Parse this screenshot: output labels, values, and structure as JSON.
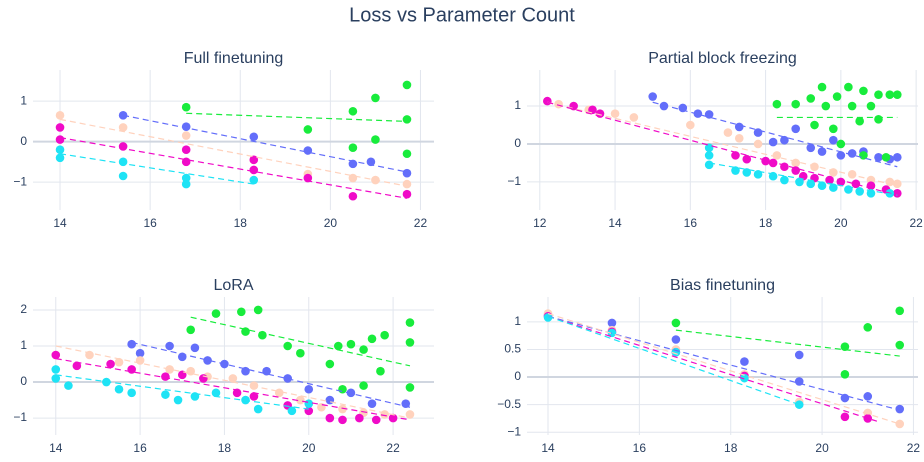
{
  "title": "Loss vs Parameter Count",
  "chart_data": [
    {
      "type": "scatter",
      "title": "Full finetuning",
      "xlim": [
        13.4,
        22.3
      ],
      "ylim": [
        -1.69,
        1.77
      ],
      "xticks": [
        14,
        16,
        18,
        20,
        22
      ],
      "yticks": [
        {
          "value": -1,
          "label": "−1"
        },
        0,
        1
      ],
      "grid": true,
      "series": [
        {
          "color": "#636efa",
          "x": [
            15.4,
            16.8,
            18.3,
            19.5,
            20.5,
            20.9,
            21.7
          ],
          "values": [
            0.65,
            0.37,
            0.12,
            -0.22,
            -0.55,
            -0.5,
            -0.78
          ],
          "trend_x": [
            15.4,
            21.7
          ],
          "trend_values": [
            0.65,
            -0.75
          ]
        },
        {
          "color": "#ffd2bd",
          "x": [
            14,
            15.4,
            16.8,
            18.3,
            19.5,
            20.5,
            21,
            21.7
          ],
          "values": [
            0.65,
            0.35,
            0.15,
            -0.45,
            -0.8,
            -0.9,
            -0.95,
            -1.05
          ],
          "trend_x": [
            14,
            21.7
          ],
          "trend_values": [
            0.55,
            -1.1
          ]
        },
        {
          "color": "#f00bc8",
          "x": [
            14,
            14,
            15.4,
            16.8,
            16.8,
            18.3,
            18.3,
            19.5,
            20.5,
            21.7
          ],
          "values": [
            0.35,
            0.05,
            -0.12,
            -0.2,
            -0.5,
            -0.45,
            -0.7,
            -0.9,
            -1.35,
            -1.3
          ],
          "trend_x": [
            14,
            21.7
          ],
          "trend_values": [
            0.1,
            -1.4
          ]
        },
        {
          "color": "#1ee3f5",
          "x": [
            14,
            14,
            15.4,
            15.4,
            16.8,
            16.8,
            18.3
          ],
          "values": [
            -0.2,
            -0.4,
            -0.5,
            -0.85,
            -0.9,
            -1.05,
            -0.95
          ],
          "trend_x": [
            14,
            18.3
          ],
          "trend_values": [
            -0.3,
            -1.05
          ]
        },
        {
          "color": "#18ec3c",
          "x": [
            16.8,
            19.5,
            20.5,
            20.5,
            21,
            21,
            21.7,
            21.7,
            21.7
          ],
          "values": [
            0.85,
            0.3,
            0.75,
            -0.15,
            1.08,
            0.05,
            1.4,
            0.55,
            -0.3
          ],
          "trend_x": [
            16.8,
            21.7
          ],
          "trend_values": [
            0.7,
            0.5
          ]
        }
      ]
    },
    {
      "type": "scatter",
      "title": "Partial block freezing",
      "xlim": [
        11.66,
        22.05
      ],
      "ylim": [
        -1.74,
        1.95
      ],
      "xticks": [
        12,
        14,
        16,
        18,
        20,
        22
      ],
      "yticks": [
        {
          "value": -1,
          "label": "−1"
        },
        0,
        1
      ],
      "grid": true,
      "series": [
        {
          "color": "#636efa",
          "x": [
            15,
            15.3,
            15.8,
            16.2,
            16.5,
            17.3,
            17.8,
            18.2,
            18.5,
            18.8,
            19.2,
            19.5,
            19.8,
            20,
            20.3,
            20.6,
            21,
            21.3,
            21.5
          ],
          "values": [
            1.25,
            1.0,
            0.95,
            0.8,
            0.78,
            0.45,
            0.3,
            0.05,
            0.1,
            0.4,
            -0.1,
            -0.2,
            0.1,
            -0.3,
            -0.25,
            -0.2,
            -0.35,
            -0.4,
            -0.35
          ],
          "trend_x": [
            15,
            21.5
          ],
          "trend_values": [
            1.1,
            -0.6
          ]
        },
        {
          "color": "#ffd2bd",
          "x": [
            12.5,
            13.3,
            14,
            14.5,
            16,
            17,
            17.3,
            17.8,
            18.3,
            18.8,
            19.3,
            19.8,
            20.3,
            20.8,
            21.3,
            21.5
          ],
          "values": [
            1.05,
            0.9,
            0.8,
            0.7,
            0.5,
            0.3,
            0.15,
            0.0,
            -0.3,
            -0.5,
            -0.6,
            -0.75,
            -0.8,
            -0.95,
            -1.0,
            -1.05
          ],
          "trend_x": [
            12.2,
            21.5
          ],
          "trend_values": [
            1.1,
            -1.1
          ]
        },
        {
          "color": "#f00bc8",
          "x": [
            12.2,
            12.9,
            13.4,
            13.6,
            17.2,
            17.5,
            18,
            18.2,
            18.5,
            18.8,
            19,
            19.3,
            19.7,
            20,
            20.4,
            20.8,
            21.2,
            21.5
          ],
          "values": [
            1.13,
            1.0,
            0.9,
            0.8,
            -0.3,
            -0.4,
            -0.45,
            -0.5,
            -0.6,
            -0.7,
            -0.85,
            -0.9,
            -0.95,
            -1.0,
            -1.05,
            -1.1,
            -1.2,
            -1.3
          ],
          "trend_x": [
            12.2,
            21.5
          ],
          "trend_values": [
            1.1,
            -1.35
          ]
        },
        {
          "color": "#1ee3f5",
          "x": [
            16.5,
            16.5,
            16.5,
            17.2,
            17.5,
            17.8,
            18.2,
            18.5,
            18.9,
            19.2,
            19.5,
            19.8,
            20.2,
            20.5,
            20.8,
            21.3
          ],
          "values": [
            -0.1,
            -0.3,
            -0.55,
            -0.7,
            -0.75,
            -0.8,
            -0.85,
            -0.95,
            -1.0,
            -1.05,
            -1.1,
            -1.15,
            -1.2,
            -1.25,
            -1.3,
            -1.3
          ],
          "trend_x": [
            16.5,
            21.5
          ],
          "trend_values": [
            -0.5,
            -1.35
          ]
        },
        {
          "color": "#18ec3c",
          "x": [
            18.3,
            18.8,
            19.2,
            19.5,
            19.6,
            19.9,
            20.2,
            20.3,
            20.6,
            20.8,
            21,
            21.3,
            21.5,
            19.3,
            19.8,
            20.5,
            21,
            20,
            20.6,
            21.2
          ],
          "values": [
            1.05,
            1.05,
            1.2,
            1.5,
            1.0,
            1.25,
            1.5,
            1.0,
            1.4,
            1.0,
            1.3,
            1.3,
            1.3,
            0.5,
            0.4,
            0.6,
            0.65,
            0.0,
            -0.3,
            -0.35
          ],
          "trend_x": [
            18.3,
            21.5
          ],
          "trend_values": [
            0.7,
            0.7
          ]
        }
      ]
    },
    {
      "type": "scatter",
      "title": "LoRA",
      "xlim": [
        13.46,
        22.97
      ],
      "ylim": [
        -1.47,
        2.36
      ],
      "xticks": [
        14,
        16,
        18,
        20,
        22
      ],
      "yticks": [
        {
          "value": -1,
          "label": "−1"
        },
        0,
        1,
        2
      ],
      "grid": true,
      "series": [
        {
          "color": "#636efa",
          "x": [
            15.8,
            16,
            16.7,
            17,
            17.3,
            17.6,
            18,
            18.5,
            19,
            19.5,
            20,
            20.5,
            21,
            21.5,
            22.3
          ],
          "values": [
            1.05,
            0.8,
            1.0,
            0.7,
            0.95,
            0.6,
            0.5,
            0.3,
            0.3,
            0.1,
            -0.2,
            -0.5,
            -0.3,
            -0.6,
            -0.6
          ],
          "trend_x": [
            15.8,
            22.4
          ],
          "trend_values": [
            1.1,
            -0.7
          ]
        },
        {
          "color": "#ffd2bd",
          "x": [
            14,
            14.8,
            15.5,
            16,
            16.7,
            17.2,
            17.6,
            18.2,
            18.7,
            19.3,
            19.8,
            20.3,
            20.8,
            21.3,
            21.8,
            22.4
          ],
          "values": [
            0.75,
            0.75,
            0.55,
            0.6,
            0.35,
            0.3,
            0.15,
            0.1,
            -0.1,
            -0.3,
            -0.5,
            -0.7,
            -0.75,
            -0.85,
            -0.9,
            -0.9
          ],
          "trend_x": [
            14,
            22.4
          ],
          "trend_values": [
            1.0,
            -1.0
          ]
        },
        {
          "color": "#f00bc8",
          "x": [
            14,
            14.5,
            15.3,
            15.8,
            16.6,
            17,
            17.5,
            18.3,
            18.7,
            19.5,
            20,
            20.5,
            20.8,
            21.2,
            21.6,
            22
          ],
          "values": [
            0.75,
            0.45,
            0.5,
            0.35,
            0.15,
            0.2,
            0.1,
            -0.3,
            -0.4,
            -0.65,
            -0.8,
            -1.0,
            -1.05,
            -1.0,
            -1.05,
            -1.0
          ],
          "trend_x": [
            14,
            22.4
          ],
          "trend_values": [
            0.65,
            -1.05
          ]
        },
        {
          "color": "#1ee3f5",
          "x": [
            14,
            14,
            14.3,
            15.2,
            15.5,
            15.8,
            16.6,
            16.9,
            17.3,
            17.8,
            18.5,
            18.8,
            19.6,
            20
          ],
          "values": [
            0.35,
            0.1,
            -0.1,
            0.0,
            -0.2,
            -0.3,
            -0.35,
            -0.5,
            -0.4,
            -0.3,
            -0.5,
            -0.75,
            -0.8,
            -0.6
          ],
          "trend_x": [
            14,
            20
          ],
          "trend_values": [
            0.2,
            -0.75
          ]
        },
        {
          "color": "#18ec3c",
          "x": [
            17.2,
            17.8,
            18.4,
            18.8,
            18.5,
            18.9,
            19.5,
            19.8,
            20.5,
            20.7,
            21,
            21.3,
            21.5,
            21.8,
            22.4,
            22.4,
            20.8,
            21.3,
            22.4,
            21.7
          ],
          "values": [
            1.45,
            1.9,
            1.95,
            2.0,
            1.4,
            1.3,
            1.0,
            0.8,
            0.5,
            1.0,
            1.05,
            0.9,
            1.2,
            1.3,
            1.65,
            1.1,
            -0.2,
            -0.1,
            -0.15,
            0.3
          ],
          "trend_x": [
            17.2,
            22.4
          ],
          "trend_values": [
            1.8,
            0.45
          ]
        }
      ]
    },
    {
      "type": "scatter",
      "title": "Bias finetuning",
      "xlim": [
        13.54,
        22.1
      ],
      "ylim": [
        -1.05,
        1.45
      ],
      "xticks": [
        14,
        16,
        18,
        20,
        22
      ],
      "yticks": [
        {
          "value": -1,
          "label": "−1"
        },
        {
          "value": -0.5,
          "label": "−0.5"
        },
        0,
        0.5,
        1
      ],
      "grid": true,
      "series": [
        {
          "color": "#636efa",
          "x": [
            14,
            15.4,
            16.8,
            18.3,
            19.5,
            19.5,
            20.5,
            21,
            21.7
          ],
          "values": [
            1.12,
            0.98,
            0.68,
            0.28,
            0.4,
            -0.08,
            -0.38,
            -0.35,
            -0.58
          ],
          "trend_x": [
            14,
            21.7
          ],
          "trend_values": [
            1.1,
            -0.6
          ]
        },
        {
          "color": "#ffd2bd",
          "x": [
            14,
            15.4,
            16.8,
            18.3,
            19.5,
            21,
            21.7
          ],
          "values": [
            1.15,
            0.85,
            0.5,
            0.05,
            -0.45,
            -0.65,
            -0.85
          ],
          "trend_x": [
            14,
            21.7
          ],
          "trend_values": [
            1.15,
            -0.85
          ]
        },
        {
          "color": "#f00bc8",
          "x": [
            14,
            15.4,
            16.8,
            18.3,
            20.5,
            21
          ],
          "values": [
            1.1,
            0.82,
            0.45,
            0.02,
            -0.72,
            -0.75
          ],
          "trend_x": [
            14,
            21.2
          ],
          "trend_values": [
            1.1,
            -0.8
          ]
        },
        {
          "color": "#1ee3f5",
          "x": [
            14,
            15.4,
            16.8,
            18.3,
            19.5
          ],
          "values": [
            1.08,
            0.8,
            0.45,
            -0.02,
            -0.5
          ],
          "trend_x": [
            14,
            19.5
          ],
          "trend_values": [
            1.1,
            -0.5
          ]
        },
        {
          "color": "#18ec3c",
          "x": [
            16.8,
            20.5,
            20.5,
            21,
            21.7,
            21.7
          ],
          "values": [
            0.98,
            0.55,
            0.05,
            0.9,
            1.2,
            0.58
          ],
          "trend_x": [
            16.8,
            21.7
          ],
          "trend_values": [
            0.85,
            0.38
          ]
        }
      ]
    }
  ]
}
